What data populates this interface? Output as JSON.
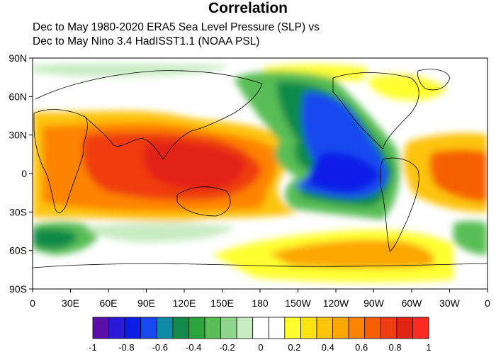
{
  "title": "Correlation",
  "subtitle_lines": [
    "Dec to May 1980-2020 ERA5 Sea Level Pressure (SLP) vs",
    "Dec to May Nino 3.4 HadISST1.1 (NOAA PSL)"
  ],
  "map": {
    "projection": "equirectangular",
    "lon_range": [
      0,
      360
    ],
    "lat_range": [
      -90,
      90
    ],
    "lat_ticks": [
      {
        "value": 90,
        "label": "90N"
      },
      {
        "value": 60,
        "label": "60N"
      },
      {
        "value": 30,
        "label": "30N"
      },
      {
        "value": 0,
        "label": "0"
      },
      {
        "value": -30,
        "label": "30S"
      },
      {
        "value": -60,
        "label": "60S"
      },
      {
        "value": -90,
        "label": "90S"
      }
    ],
    "lon_ticks": [
      {
        "value": 0,
        "label": "0"
      },
      {
        "value": 30,
        "label": "30E"
      },
      {
        "value": 60,
        "label": "60E"
      },
      {
        "value": 90,
        "label": "90E"
      },
      {
        "value": 120,
        "label": "120E"
      },
      {
        "value": 150,
        "label": "150E"
      },
      {
        "value": 180,
        "label": "180"
      },
      {
        "value": 210,
        "label": "150W"
      },
      {
        "value": 240,
        "label": "120W"
      },
      {
        "value": 270,
        "label": "90W"
      },
      {
        "value": 300,
        "label": "60W"
      },
      {
        "value": 330,
        "label": "30W"
      },
      {
        "value": 360,
        "label": "0"
      }
    ],
    "coastline_color": "#000000"
  },
  "colorbar": {
    "levels": [
      -1,
      -0.9,
      -0.8,
      -0.7,
      -0.6,
      -0.5,
      -0.4,
      -0.3,
      -0.2,
      -0.1,
      0,
      0.1,
      0.2,
      0.3,
      0.4,
      0.5,
      0.6,
      0.7,
      0.8,
      0.9,
      1
    ],
    "colors": [
      "#5a0fa8",
      "#2a1ad8",
      "#0c1ee6",
      "#1848f0",
      "#0f8aa5",
      "#118a4a",
      "#2aa33a",
      "#58bd55",
      "#8fd58b",
      "#c8ebc2",
      "#ffffff",
      "#ffffff",
      "#ffff30",
      "#fbe313",
      "#fdc40a",
      "#fca600",
      "#fd8400",
      "#f66000",
      "#ef3c10",
      "#e32412",
      "#ff2a22"
    ],
    "labels": [
      {
        "value": -1,
        "label": "-1"
      },
      {
        "value": -0.8,
        "label": "-0.8"
      },
      {
        "value": -0.6,
        "label": "-0.6"
      },
      {
        "value": -0.4,
        "label": "-0.4"
      },
      {
        "value": -0.2,
        "label": "-0.2"
      },
      {
        "value": 0,
        "label": "0"
      },
      {
        "value": 0.2,
        "label": "0.2"
      },
      {
        "value": 0.4,
        "label": "0.4"
      },
      {
        "value": 0.6,
        "label": "0.6"
      },
      {
        "value": 0.8,
        "label": "0.8"
      },
      {
        "value": 1,
        "label": "1"
      }
    ]
  }
}
